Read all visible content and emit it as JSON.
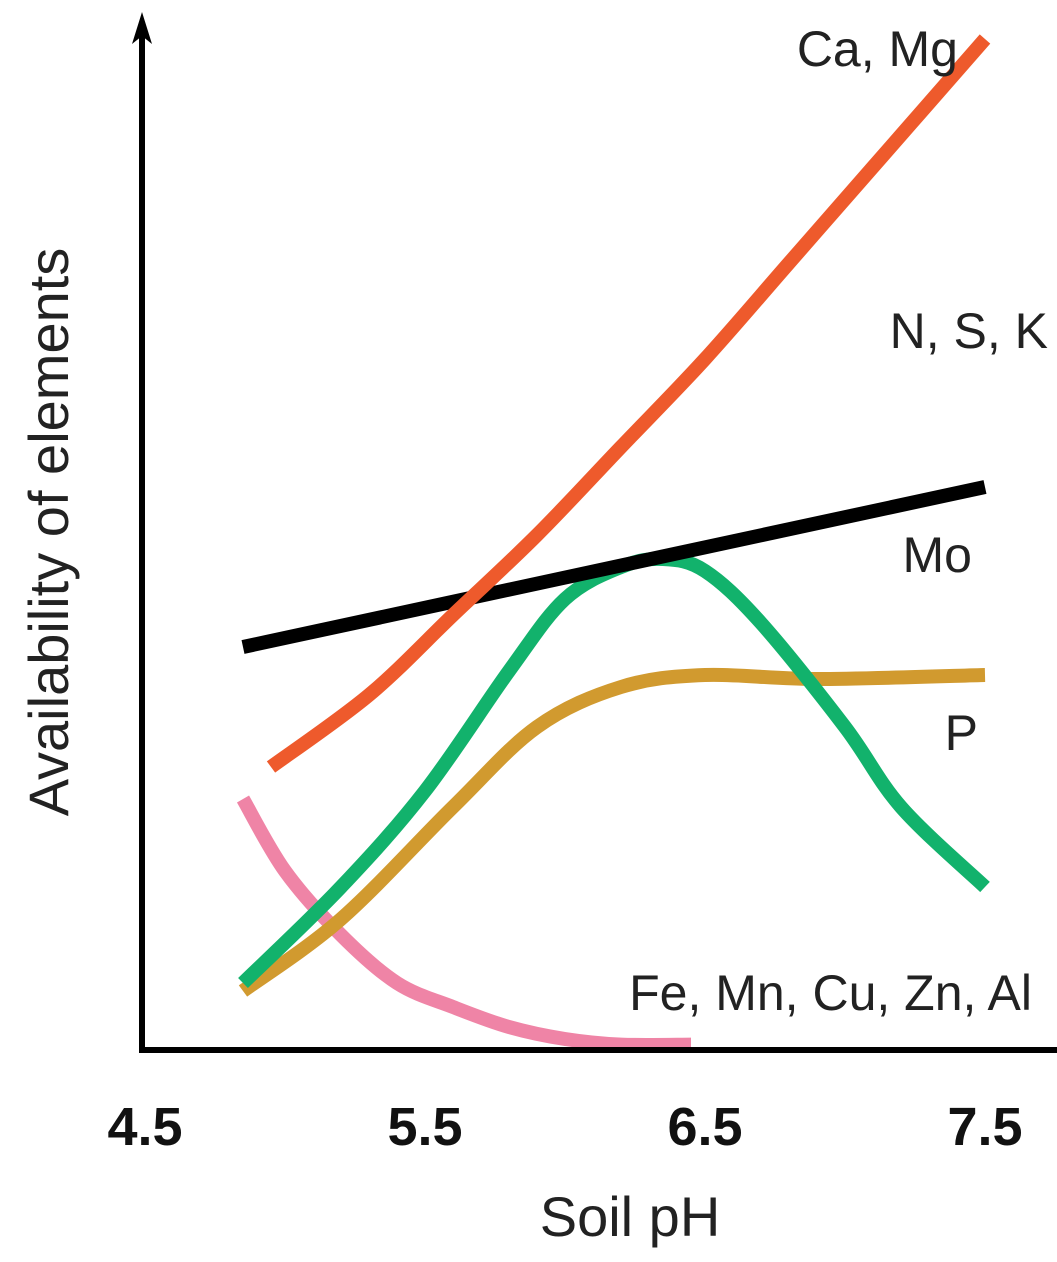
{
  "chart_data": {
    "type": "line",
    "title": "",
    "xlabel": "Soil pH",
    "ylabel": "Availability of elements",
    "xlim": [
      4.5,
      7.5
    ],
    "x_ticks": [
      "4.5",
      "5.5",
      "6.5",
      "7.5"
    ],
    "grid": false,
    "legend": "inline labels at line ends",
    "series": [
      {
        "name": "Ca, Mg",
        "color": "#ee5a2c",
        "x": [
          4.95,
          5.3,
          5.6,
          5.9,
          6.2,
          6.5,
          6.8,
          7.1,
          7.5
        ],
        "y": [
          35,
          44,
          54,
          64,
          75,
          86,
          98,
          110,
          126
        ]
      },
      {
        "name": "N, S, K",
        "color": "#000000",
        "x": [
          4.85,
          7.5
        ],
        "y": [
          50,
          70
        ]
      },
      {
        "name": "Mo",
        "color": "#d19a2f",
        "x": [
          4.85,
          5.2,
          5.6,
          5.9,
          6.2,
          6.5,
          6.9,
          7.5
        ],
        "y": [
          7,
          16,
          30,
          40,
          45,
          46.5,
          46,
          46.5
        ]
      },
      {
        "name": "P",
        "color": "#12b26c",
        "x": [
          4.85,
          5.2,
          5.5,
          5.8,
          6.0,
          6.2,
          6.35,
          6.5,
          6.7,
          7.0,
          7.2,
          7.5
        ],
        "y": [
          8,
          20,
          32,
          47,
          56,
          60,
          61,
          59.5,
          53,
          40,
          30,
          20
        ]
      },
      {
        "name": "Fe, Mn, Cu, Zn, Al",
        "color": "#ef84a6",
        "x": [
          4.85,
          5.0,
          5.2,
          5.4,
          5.6,
          5.8,
          6.0,
          6.2,
          6.45
        ],
        "y": [
          31,
          22,
          14,
          8,
          5,
          2.5,
          1,
          0.3,
          0.3
        ]
      }
    ]
  }
}
